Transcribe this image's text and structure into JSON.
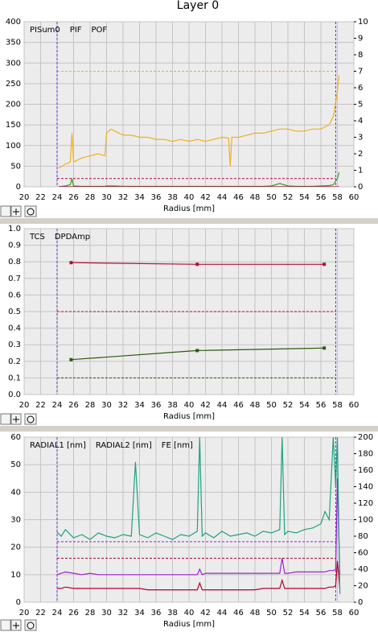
{
  "chart_data": [
    {
      "type": "line",
      "title": "Layer 0",
      "xlabel": "Radius [mm]",
      "xlim": [
        20,
        60
      ],
      "xticks": [
        20,
        22,
        24,
        26,
        28,
        30,
        32,
        34,
        36,
        38,
        40,
        42,
        44,
        46,
        48,
        50,
        52,
        54,
        56,
        58,
        60
      ],
      "ylim": [
        0,
        400
      ],
      "yticks": [
        0,
        50,
        100,
        150,
        200,
        250,
        300,
        350,
        400
      ],
      "y2lim": [
        0,
        10
      ],
      "y2ticks": [
        0,
        1,
        2,
        3,
        4,
        5,
        6,
        7,
        8,
        9,
        10
      ],
      "grid": true,
      "x": [
        24.2,
        25,
        25.6,
        25.8,
        26,
        27,
        28,
        29,
        29.8,
        30,
        30.5,
        31,
        32,
        33,
        34,
        35,
        36,
        37,
        38,
        39,
        40,
        41,
        42,
        43,
        44,
        44.8,
        45,
        45.2,
        46,
        47,
        48,
        49,
        50,
        51,
        52,
        53,
        54,
        55,
        56,
        57,
        57.5,
        58,
        58.2
      ],
      "series": [
        {
          "name": "PISum0",
          "color": "#f0b020",
          "values": [
            45,
            55,
            60,
            130,
            60,
            70,
            75,
            80,
            75,
            130,
            140,
            135,
            125,
            125,
            120,
            120,
            115,
            115,
            110,
            115,
            110,
            115,
            110,
            115,
            120,
            118,
            50,
            120,
            120,
            125,
            130,
            130,
            135,
            140,
            140,
            135,
            135,
            140,
            140,
            150,
            170,
            230,
            270
          ]
        },
        {
          "name": "PIF",
          "color": "#30a020",
          "values": [
            0,
            2,
            5,
            20,
            2,
            1,
            1,
            1,
            1,
            2,
            2,
            2,
            1,
            1,
            1,
            1,
            1,
            1,
            1,
            1,
            1,
            1,
            1,
            1,
            1,
            1,
            1,
            1,
            1,
            1,
            1,
            1,
            2,
            8,
            2,
            1,
            1,
            1,
            2,
            3,
            5,
            20,
            35
          ]
        },
        {
          "name": "POF",
          "color": "#c00040",
          "values": [
            0,
            0,
            0,
            0,
            0,
            0,
            0,
            0,
            0,
            0,
            0,
            0,
            0,
            0,
            0,
            0,
            0,
            0,
            0,
            0,
            0,
            0,
            0,
            0,
            0,
            0,
            0,
            0,
            0,
            0,
            0,
            0,
            0,
            0,
            0,
            0,
            0,
            0,
            0,
            0,
            0,
            0,
            0
          ]
        }
      ],
      "hlines": [
        {
          "value": 280,
          "color": "#f0b020"
        },
        {
          "value": 20,
          "color": "#c00040"
        }
      ],
      "vlines": [
        24,
        57.8
      ],
      "vline_color": "#6a30d0"
    },
    {
      "type": "line",
      "xlabel": "Radius [mm]",
      "xlim": [
        20,
        60
      ],
      "xticks": [
        20,
        22,
        24,
        26,
        28,
        30,
        32,
        34,
        36,
        38,
        40,
        42,
        44,
        46,
        48,
        50,
        52,
        54,
        56,
        58,
        60
      ],
      "ylim": [
        0,
        1
      ],
      "yticks": [
        {
          "value": 0,
          "label": "0.0"
        },
        0.1,
        0.2,
        0.3,
        0.4,
        0.5,
        0.6,
        0.7,
        0.8,
        0.9,
        {
          "value": 1,
          "label": "1.0"
        }
      ],
      "grid": true,
      "series": [
        {
          "name": "TCS",
          "color": "#2a5a10",
          "markers": true,
          "x": [
            25.7,
            41,
            56.4
          ],
          "values": [
            0.21,
            0.265,
            0.28
          ]
        },
        {
          "name": "DPDAmp",
          "color": "#b01030",
          "markers": true,
          "x": [
            25.7,
            41,
            56.4
          ],
          "values": [
            0.795,
            0.785,
            0.785
          ]
        }
      ],
      "hlines": [
        {
          "value": 0.5,
          "color": "#b01030"
        },
        {
          "value": 0.1,
          "color": "#2a5a10"
        }
      ],
      "vlines": [
        24,
        57.8
      ],
      "vline_color": "#6a30d0"
    },
    {
      "type": "line",
      "xlabel": "Radius [mm]",
      "xlim": [
        20,
        60
      ],
      "xticks": [
        20,
        22,
        24,
        26,
        28,
        30,
        32,
        34,
        36,
        38,
        40,
        42,
        44,
        46,
        48,
        50,
        52,
        54,
        56,
        58,
        60
      ],
      "ylim": [
        0,
        60
      ],
      "yticks": [
        0,
        10,
        20,
        30,
        40,
        50,
        60
      ],
      "y2lim": [
        0,
        200
      ],
      "y2ticks": [
        0,
        20,
        40,
        60,
        80,
        100,
        120,
        140,
        160,
        180,
        200
      ],
      "grid": true,
      "x": [
        24,
        24.5,
        25,
        26,
        27,
        28,
        29,
        30,
        31,
        32,
        33,
        33.5,
        34,
        35,
        36,
        37,
        38,
        39,
        40,
        41,
        41.3,
        41.6,
        42,
        43,
        44,
        45,
        46,
        47,
        48,
        49,
        50,
        51,
        51.3,
        51.6,
        52,
        53,
        54,
        55,
        56,
        56.5,
        57,
        57.5,
        57.8,
        58,
        58.3
      ],
      "series": [
        {
          "name": "RADIAL1 [nm]",
          "color": "#a020d0",
          "values": [
            10,
            10.5,
            11,
            10.5,
            10,
            10.5,
            10,
            10,
            10,
            10,
            10,
            10,
            10,
            10,
            10,
            10,
            10,
            10,
            10,
            10,
            12,
            10,
            10.5,
            10.5,
            10.5,
            10.5,
            10.5,
            10.5,
            10.5,
            10.5,
            10.5,
            10.5,
            16,
            10.5,
            10.5,
            11,
            11,
            11,
            11,
            11,
            11.5,
            11.5,
            12,
            45,
            10
          ]
        },
        {
          "name": "RADIAL2 [nm]",
          "color": "#b00030",
          "values": [
            5,
            5,
            5.5,
            5,
            5,
            5,
            5,
            5,
            5,
            5,
            5,
            5,
            5,
            4.5,
            4.5,
            4.5,
            4.5,
            4.5,
            4.5,
            4.5,
            7,
            4.5,
            4.5,
            4.5,
            4.5,
            4.5,
            4.5,
            4.5,
            4.5,
            5,
            5,
            5,
            8,
            5,
            5,
            5,
            5,
            5,
            5,
            5,
            5.5,
            5.5,
            6,
            15,
            5
          ]
        },
        {
          "name": "FE [nm]",
          "color": "#20a080",
          "axis": "y2",
          "values": [
            85,
            80,
            88,
            78,
            82,
            76,
            84,
            80,
            78,
            82,
            80,
            170,
            82,
            78,
            84,
            80,
            76,
            82,
            80,
            86,
            200,
            80,
            84,
            78,
            86,
            80,
            82,
            84,
            80,
            86,
            84,
            88,
            200,
            82,
            86,
            84,
            88,
            90,
            95,
            110,
            100,
            200,
            140,
            200,
            10
          ]
        }
      ],
      "hlines": [
        {
          "value": 22,
          "color": "#a020d0"
        },
        {
          "value": 16,
          "color": "#b00030"
        }
      ],
      "vlines": [
        24,
        57.8
      ],
      "vline_color": "#6a30d0"
    }
  ]
}
